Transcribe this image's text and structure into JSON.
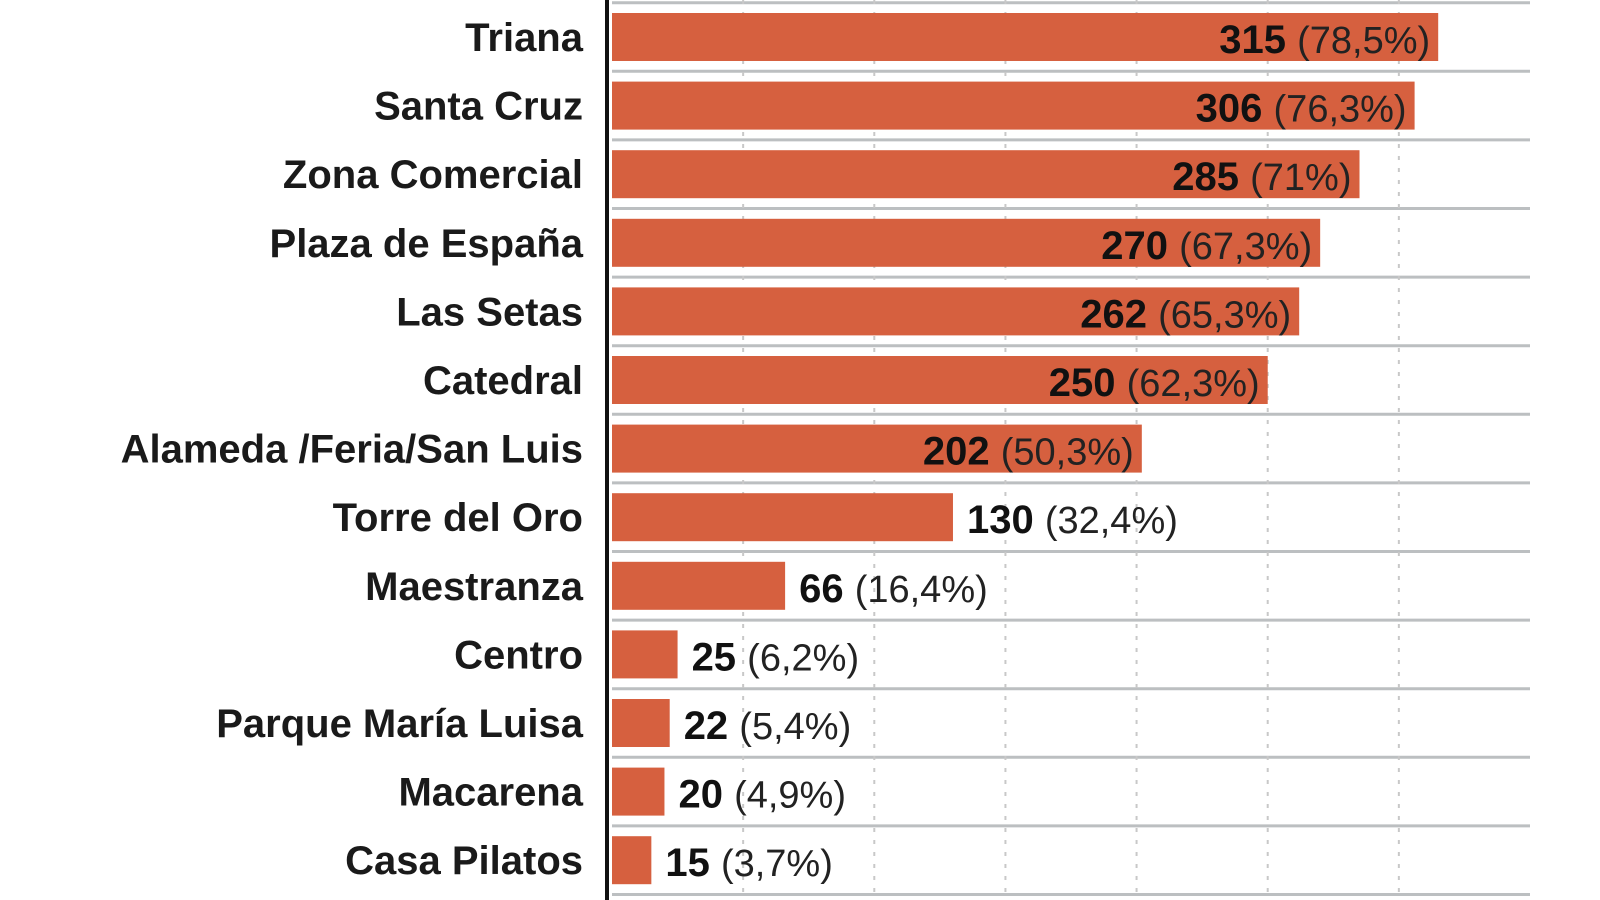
{
  "chart_data": {
    "type": "bar",
    "orientation": "horizontal",
    "categories": [
      "Triana",
      "Santa Cruz",
      "Zona Comercial",
      "Plaza de España",
      "Las Setas",
      "Catedral",
      "Alameda /Feria/San Luis",
      "Torre del Oro",
      "Maestranza",
      "Centro",
      "Parque María Luisa",
      "Macarena",
      "Casa Pilatos"
    ],
    "values": [
      315,
      306,
      285,
      270,
      262,
      250,
      202,
      130,
      66,
      25,
      22,
      20,
      15
    ],
    "percent_labels": [
      "(78,5%)",
      "(76,3%)",
      "(71%)",
      "(67,3%)",
      "(65,3%)",
      "(62,3%)",
      "(50,3%)",
      "(32,4%)",
      "(16,4%)",
      "(6,2%)",
      "(5,4%)",
      "(4,9%)",
      "(3,7%)"
    ],
    "xlim": [
      0,
      350
    ],
    "grid": {
      "vertical_dotted_every": 50,
      "row_separators": true
    },
    "bar_color": "#d6603f",
    "title": "",
    "xlabel": "",
    "ylabel": ""
  }
}
